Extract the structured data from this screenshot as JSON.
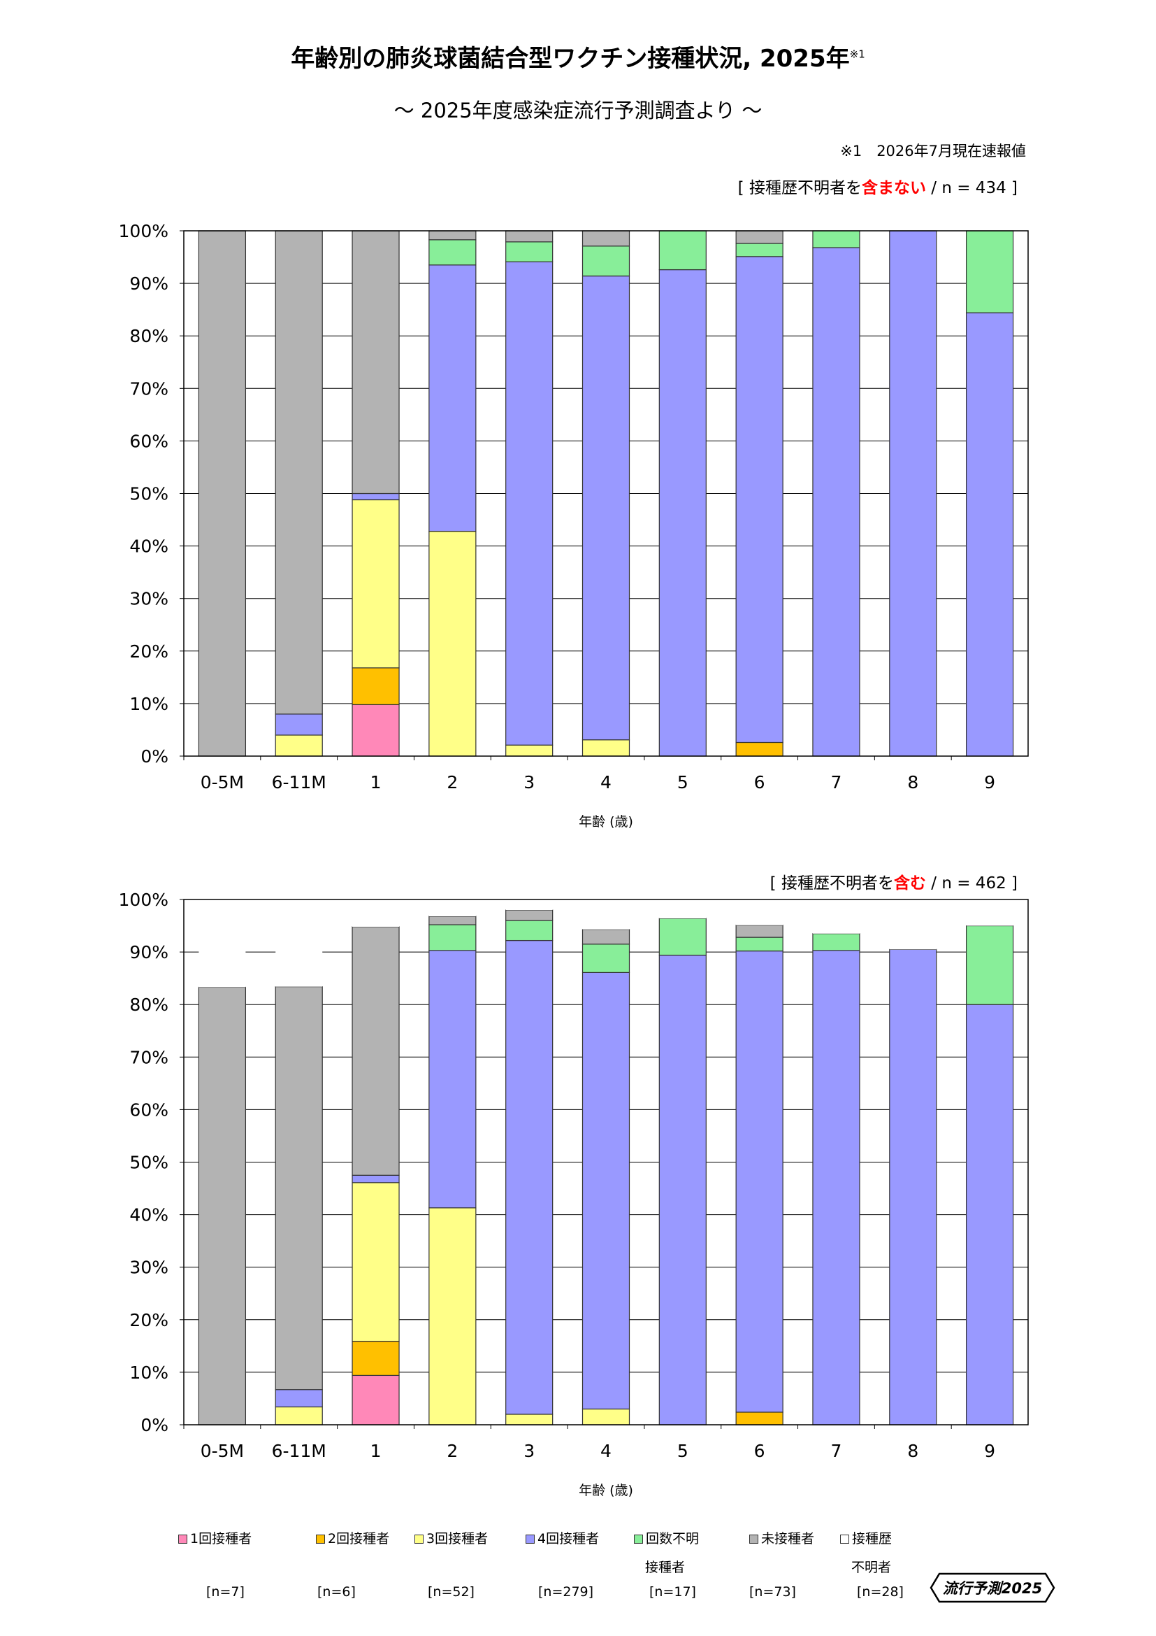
{
  "title": "年齢別の肺炎球菌結合型ワクチン接種状況, 2025年",
  "title_note": "※1",
  "subtitle": "～ 2025年度感染症流行予測調査より ～",
  "footnote": "※1　2026年7月現在速報値",
  "logo_text": "流行予測2025",
  "chart_data": [
    {
      "type": "bar",
      "stacked": true,
      "note_prefix": "[ 接種歴不明者を",
      "note_highlight": "含まない",
      "note_suffix": " / n = 434 ]",
      "xlabel": "年齢 (歳)",
      "ylim": [
        0,
        100
      ],
      "yticks": [
        "0%",
        "10%",
        "20%",
        "30%",
        "40%",
        "50%",
        "60%",
        "70%",
        "80%",
        "90%",
        "100%"
      ],
      "categories": [
        "0-5M",
        "6-11M",
        "1",
        "2",
        "3",
        "4",
        "5",
        "6",
        "7",
        "8",
        "9"
      ],
      "series": [
        {
          "name": "1回接種者",
          "color": "#ff88b8",
          "values": [
            0,
            0,
            9.8,
            0,
            0,
            0,
            0,
            0,
            0,
            0,
            0
          ]
        },
        {
          "name": "2回接種者",
          "color": "#ffc000",
          "values": [
            0,
            0,
            7.0,
            0,
            0,
            0,
            0,
            2.6,
            0,
            0,
            0
          ]
        },
        {
          "name": "3回接種者",
          "color": "#ffff88",
          "values": [
            0,
            4.0,
            32.0,
            42.8,
            2.1,
            3.1,
            0,
            0,
            0,
            0,
            0
          ]
        },
        {
          "name": "4回接種者",
          "color": "#9999ff",
          "values": [
            0,
            4.0,
            1.2,
            50.7,
            92.0,
            88.3,
            92.6,
            92.5,
            96.8,
            100,
            84.4
          ]
        },
        {
          "name": "回数不明接種者",
          "color": "#88ee99",
          "values": [
            0,
            0,
            0,
            4.8,
            3.8,
            5.7,
            7.4,
            2.5,
            3.2,
            0,
            15.6
          ]
        },
        {
          "name": "未接種者",
          "color": "#b3b3b3",
          "values": [
            100,
            92.0,
            50.0,
            1.7,
            2.1,
            2.9,
            0,
            2.4,
            0,
            0,
            0
          ]
        }
      ]
    },
    {
      "type": "bar",
      "stacked": true,
      "note_prefix": "[ 接種歴不明者を",
      "note_highlight": "含む",
      "note_suffix": " / n = 462 ]",
      "xlabel": "年齢 (歳)",
      "ylim": [
        0,
        100
      ],
      "yticks": [
        "0%",
        "10%",
        "20%",
        "30%",
        "40%",
        "50%",
        "60%",
        "70%",
        "80%",
        "90%",
        "100%"
      ],
      "categories": [
        "0-5M",
        "6-11M",
        "1",
        "2",
        "3",
        "4",
        "5",
        "6",
        "7",
        "8",
        "9"
      ],
      "series": [
        {
          "name": "1回接種者",
          "color": "#ff88b8",
          "values": [
            0,
            0,
            9.4,
            0,
            0,
            0,
            0,
            0,
            0,
            0,
            0
          ]
        },
        {
          "name": "2回接種者",
          "color": "#ffc000",
          "values": [
            0,
            0,
            6.5,
            0,
            0,
            0,
            0,
            2.4,
            0,
            0,
            0
          ]
        },
        {
          "name": "3回接種者",
          "color": "#ffff88",
          "values": [
            0,
            3.4,
            30.2,
            41.3,
            2.0,
            3.0,
            0,
            0,
            0,
            0,
            0
          ]
        },
        {
          "name": "4回接種者",
          "color": "#9999ff",
          "values": [
            0,
            3.3,
            1.4,
            49.0,
            90.2,
            83.1,
            89.4,
            87.8,
            90.3,
            90.5,
            80.0
          ]
        },
        {
          "name": "回数不明接種者",
          "color": "#88ee99",
          "values": [
            0,
            0,
            0,
            4.9,
            3.8,
            5.4,
            7.0,
            2.6,
            3.2,
            0,
            15.0
          ]
        },
        {
          "name": "未接種者",
          "color": "#b3b3b3",
          "values": [
            83.3,
            76.7,
            47.3,
            1.6,
            2.0,
            2.8,
            0,
            2.3,
            0,
            0,
            0
          ]
        },
        {
          "name": "接種歴不明者",
          "color": "#ffffff",
          "values": [
            16.7,
            16.6,
            5.2,
            3.2,
            2.0,
            5.7,
            3.6,
            4.9,
            6.5,
            9.5,
            5.0
          ]
        }
      ]
    }
  ],
  "legend": [
    {
      "label": "1回接種者",
      "label2": "",
      "count": "[n=7]",
      "color": "#ff88b8"
    },
    {
      "label": "2回接種者",
      "label2": "",
      "count": "[n=6]",
      "color": "#ffc000"
    },
    {
      "label": "3回接種者",
      "label2": "",
      "count": "[n=52]",
      "color": "#ffff88"
    },
    {
      "label": "4回接種者",
      "label2": "",
      "count": "[n=279]",
      "color": "#9999ff"
    },
    {
      "label": "回数不明",
      "label2": "接種者",
      "count": "[n=17]",
      "color": "#88ee99"
    },
    {
      "label": "未接種者",
      "label2": "",
      "count": "[n=73]",
      "color": "#b3b3b3"
    },
    {
      "label": "接種歴",
      "label2": "不明者",
      "count": "[n=28]",
      "color": "#ffffff"
    }
  ]
}
